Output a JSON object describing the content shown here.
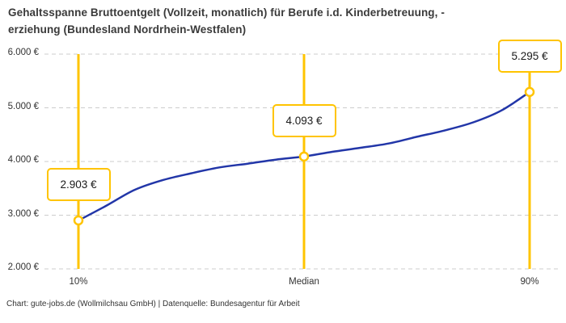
{
  "title_lines": [
    "Gehaltsspanne Bruttoentgelt (Vollzeit, monatlich) für Berufe i.d. Kinderbetreuung, -",
    "erziehung (Bundesland Nordrhein-Westfalen)"
  ],
  "footer": "Chart: gute-jobs.de (Wollmilchsau GmbH) | Datenquelle: Bundesagentur für Arbeit",
  "chart_data": {
    "type": "line",
    "title": "Gehaltsspanne Bruttoentgelt (Vollzeit, monatlich) für Berufe i.d. Kinderbetreuung, -erziehung (Bundesland Nordrhein-Westfalen)",
    "xlabel": "",
    "ylabel": "",
    "x_axis": {
      "unit": "percentile",
      "ticks": [
        {
          "p": 10,
          "label": "10%"
        },
        {
          "p": 50,
          "label": "Median"
        },
        {
          "p": 90,
          "label": "90%"
        }
      ]
    },
    "y_axis": {
      "min": 2000,
      "max": 6000,
      "ticks": [
        {
          "v": 2000,
          "label": "2.000 €"
        },
        {
          "v": 3000,
          "label": "3.000 €"
        },
        {
          "v": 4000,
          "label": "4.000 €"
        },
        {
          "v": 5000,
          "label": "5.000 €"
        },
        {
          "v": 6000,
          "label": "6.000 €"
        }
      ],
      "grid": "dashed"
    },
    "annotations": [
      {
        "p": 10,
        "value": 2903,
        "label": "2.903 €"
      },
      {
        "p": 50,
        "value": 4093,
        "label": "4.093 €"
      },
      {
        "p": 90,
        "value": 5295,
        "label": "5.295 €"
      }
    ],
    "curve": [
      [
        10,
        2903
      ],
      [
        15,
        3180
      ],
      [
        20,
        3474
      ],
      [
        25,
        3655
      ],
      [
        30,
        3780
      ],
      [
        35,
        3890
      ],
      [
        40,
        3960
      ],
      [
        45,
        4035
      ],
      [
        50,
        4093
      ],
      [
        55,
        4180
      ],
      [
        60,
        4255
      ],
      [
        65,
        4335
      ],
      [
        70,
        4460
      ],
      [
        75,
        4580
      ],
      [
        80,
        4730
      ],
      [
        85,
        4950
      ],
      [
        90,
        5295
      ]
    ],
    "colors": {
      "line": "#2236a8",
      "accent": "#ffc400",
      "grid": "#cccccc",
      "text": "#333333",
      "marker_fill": "#ffffff"
    },
    "legend": "none"
  }
}
